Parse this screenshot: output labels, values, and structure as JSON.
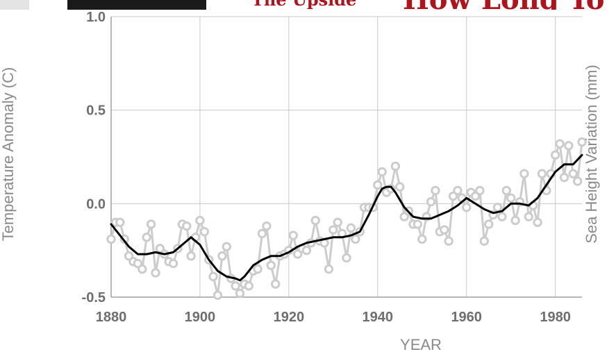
{
  "colors": {
    "grid": "#c8c8c8",
    "axis": "#a0a0a0",
    "tick_text": "#6e6e6e",
    "annual_series": "#cccccc",
    "smoothed_series": "#000000",
    "header_red": "#b0131b",
    "header_dark": "#1a1a1a"
  },
  "header_strip": {
    "left_text": "The Upside",
    "right_text": "How Long To"
  },
  "chart_data": {
    "type": "line",
    "xlabel": "YEAR",
    "ylabel": "Temperature Anomaly (C)",
    "y2label": "Sea Height Variation (mm)",
    "xlim": [
      1880,
      1986
    ],
    "ylim": [
      -0.5,
      1.0
    ],
    "x_ticks": [
      1880,
      1900,
      1920,
      1940,
      1960,
      1980
    ],
    "x_tick_labels": [
      "1880",
      "1900",
      "1920",
      "1940",
      "1960",
      "1980"
    ],
    "y_ticks": [
      -0.5,
      0.0,
      0.5,
      1.0
    ],
    "y_tick_labels": [
      "-0.5",
      "0.0",
      "0.5",
      "1.0"
    ],
    "grid": true,
    "series": [
      {
        "style": "annual-markers",
        "x": [
          1880,
          1881,
          1882,
          1883,
          1884,
          1885,
          1886,
          1887,
          1888,
          1889,
          1890,
          1891,
          1892,
          1893,
          1894,
          1895,
          1896,
          1897,
          1898,
          1899,
          1900,
          1901,
          1902,
          1903,
          1904,
          1905,
          1906,
          1907,
          1908,
          1909,
          1910,
          1911,
          1912,
          1913,
          1914,
          1915,
          1916,
          1917,
          1918,
          1919,
          1920,
          1921,
          1922,
          1923,
          1924,
          1925,
          1926,
          1927,
          1928,
          1929,
          1930,
          1931,
          1932,
          1933,
          1934,
          1935,
          1936,
          1937,
          1938,
          1939,
          1940,
          1941,
          1942,
          1943,
          1944,
          1945,
          1946,
          1947,
          1948,
          1949,
          1950,
          1951,
          1952,
          1953,
          1954,
          1955,
          1956,
          1957,
          1958,
          1959,
          1960,
          1961,
          1962,
          1963,
          1964,
          1965,
          1966,
          1967,
          1968,
          1969,
          1970,
          1971,
          1972,
          1973,
          1974,
          1975,
          1976,
          1977,
          1978,
          1979,
          1980,
          1981,
          1982,
          1983,
          1984,
          1985,
          1986
        ],
        "values": [
          -0.19,
          -0.1,
          -0.1,
          -0.19,
          -0.28,
          -0.31,
          -0.32,
          -0.35,
          -0.18,
          -0.11,
          -0.37,
          -0.24,
          -0.27,
          -0.31,
          -0.32,
          -0.24,
          -0.11,
          -0.12,
          -0.28,
          -0.18,
          -0.09,
          -0.15,
          -0.3,
          -0.39,
          -0.49,
          -0.28,
          -0.23,
          -0.4,
          -0.44,
          -0.48,
          -0.43,
          -0.44,
          -0.36,
          -0.35,
          -0.16,
          -0.12,
          -0.33,
          -0.43,
          -0.28,
          -0.27,
          -0.25,
          -0.17,
          -0.27,
          -0.24,
          -0.25,
          -0.21,
          -0.09,
          -0.2,
          -0.21,
          -0.35,
          -0.14,
          -0.1,
          -0.16,
          -0.29,
          -0.13,
          -0.19,
          -0.15,
          -0.02,
          -0.02,
          -0.02,
          0.1,
          0.17,
          0.06,
          0.08,
          0.2,
          0.09,
          -0.07,
          -0.04,
          -0.11,
          -0.11,
          -0.19,
          -0.07,
          0.01,
          0.07,
          -0.15,
          -0.14,
          -0.2,
          0.04,
          0.07,
          0.03,
          -0.02,
          0.06,
          0.04,
          0.07,
          -0.2,
          -0.11,
          -0.06,
          -0.02,
          -0.07,
          0.07,
          0.03,
          -0.09,
          0.01,
          0.16,
          -0.07,
          -0.01,
          -0.1,
          0.16,
          0.07,
          0.16,
          0.26,
          0.32,
          0.14,
          0.31,
          0.16,
          0.12,
          0.33
        ]
      },
      {
        "style": "smoothed-line",
        "x": [
          1880,
          1882,
          1884,
          1886,
          1888,
          1890,
          1892,
          1894,
          1896,
          1898,
          1900,
          1902,
          1904,
          1906,
          1908,
          1909,
          1910,
          1912,
          1914,
          1916,
          1918,
          1920,
          1922,
          1924,
          1926,
          1928,
          1930,
          1932,
          1934,
          1936,
          1938,
          1940,
          1941,
          1942,
          1943,
          1944,
          1946,
          1948,
          1950,
          1952,
          1954,
          1956,
          1958,
          1960,
          1962,
          1964,
          1966,
          1968,
          1970,
          1972,
          1974,
          1976,
          1978,
          1980,
          1982,
          1984,
          1986
        ],
        "values": [
          -0.11,
          -0.17,
          -0.23,
          -0.27,
          -0.27,
          -0.26,
          -0.27,
          -0.26,
          -0.22,
          -0.18,
          -0.22,
          -0.3,
          -0.36,
          -0.39,
          -0.4,
          -0.41,
          -0.39,
          -0.33,
          -0.3,
          -0.28,
          -0.28,
          -0.26,
          -0.23,
          -0.21,
          -0.2,
          -0.19,
          -0.18,
          -0.18,
          -0.17,
          -0.15,
          -0.06,
          0.04,
          0.08,
          0.09,
          0.09,
          0.06,
          -0.02,
          -0.07,
          -0.08,
          -0.08,
          -0.06,
          -0.04,
          -0.01,
          0.03,
          0.0,
          -0.03,
          -0.05,
          -0.04,
          0.0,
          0.0,
          -0.01,
          0.03,
          0.1,
          0.17,
          0.21,
          0.21,
          0.26
        ]
      }
    ]
  }
}
